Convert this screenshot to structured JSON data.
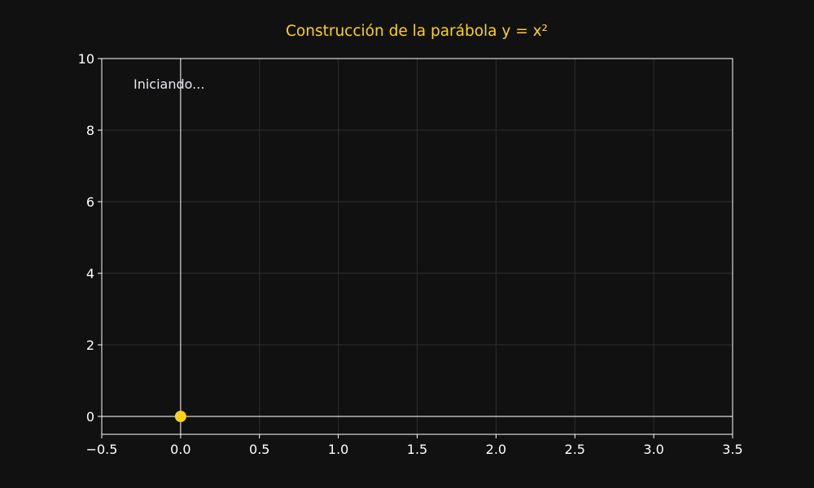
{
  "chart_data": {
    "type": "scatter",
    "title": "Construcción de la parábola y = x²",
    "xlabel": "",
    "ylabel": "",
    "xlim": [
      -0.5,
      3.5
    ],
    "ylim": [
      -0.5,
      10
    ],
    "x_ticks": [
      -0.5,
      0.0,
      0.5,
      1.0,
      1.5,
      2.0,
      2.5,
      3.0,
      3.5
    ],
    "x_tick_labels": [
      "−0.5",
      "0.0",
      "0.5",
      "1.0",
      "1.5",
      "2.0",
      "2.5",
      "3.0",
      "3.5"
    ],
    "y_ticks": [
      0,
      2,
      4,
      6,
      8,
      10
    ],
    "y_tick_labels": [
      "0",
      "2",
      "4",
      "6",
      "8",
      "10"
    ],
    "grid": true,
    "reference_lines": {
      "x": 0,
      "y": 0
    },
    "series": [
      {
        "x": [
          0.0
        ],
        "y": [
          0.0
        ],
        "color": "#ffd21a"
      }
    ],
    "annotation": "Iniciando..."
  },
  "colors": {
    "background": "#111111",
    "axes": "#ffffff",
    "grid": "#2e2e2e",
    "accent": "#ffd21a"
  }
}
